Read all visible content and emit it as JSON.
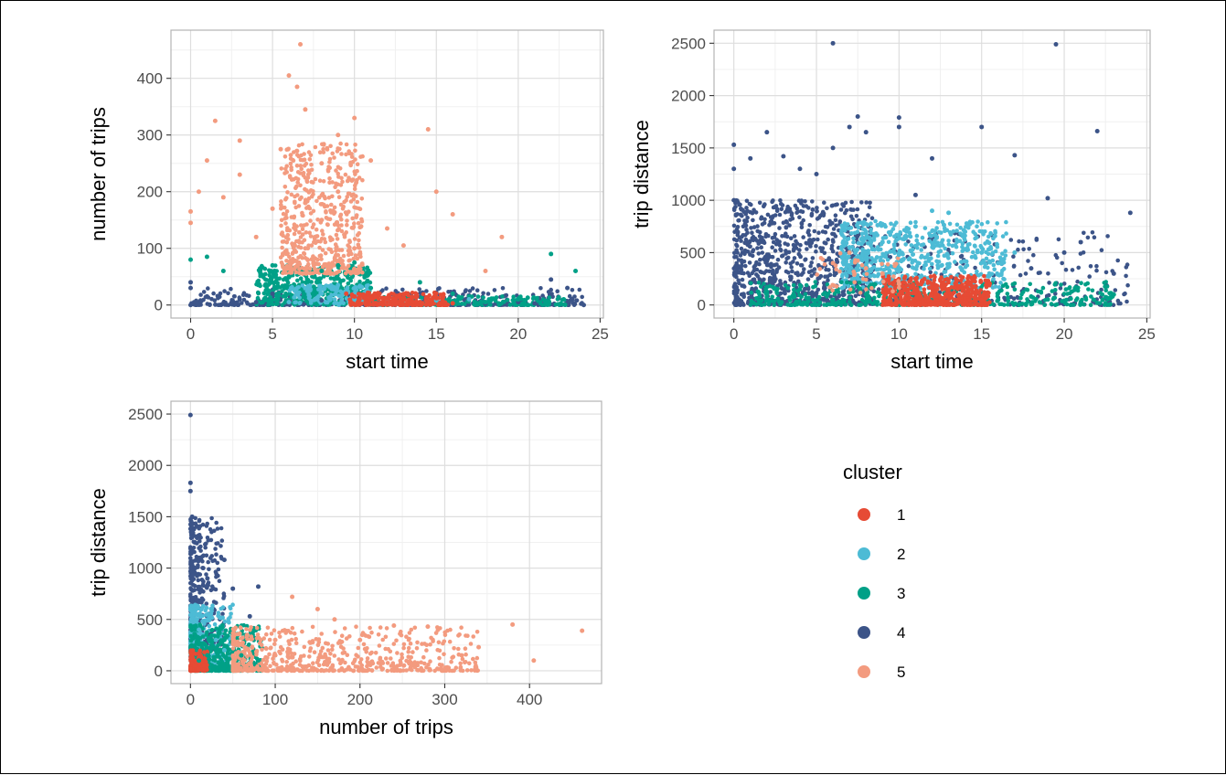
{
  "legend": {
    "title": "cluster",
    "entries": [
      {
        "label": "1",
        "color": "#E64B35"
      },
      {
        "label": "2",
        "color": "#4DBBD5"
      },
      {
        "label": "3",
        "color": "#00A087"
      },
      {
        "label": "4",
        "color": "#3C5488"
      },
      {
        "label": "5",
        "color": "#F39B7F"
      }
    ]
  },
  "chart_data": [
    {
      "type": "scatter",
      "xlabel": "start time",
      "ylabel": "number of trips",
      "xlim": [
        -1.2,
        25.2
      ],
      "ylim": [
        -23,
        485
      ],
      "xticks": [
        0,
        5,
        10,
        15,
        20,
        25
      ],
      "yticks": [
        0,
        100,
        200,
        300,
        400
      ],
      "grid": true,
      "clusters": {
        "1": {
          "x_range": [
            9.5,
            16
          ],
          "y_range": [
            0,
            25
          ]
        },
        "2": {
          "x_range": [
            6,
            17
          ],
          "y_range": [
            0,
            40
          ]
        },
        "3": {
          "x_range": [
            0,
            23.5
          ],
          "y_range": [
            0,
            90
          ]
        },
        "4": {
          "x_range": [
            0,
            24
          ],
          "y_range": [
            0,
            45
          ]
        },
        "5": {
          "x_range": [
            0,
            19
          ],
          "y_range": [
            40,
            460
          ]
        }
      },
      "series": [
        {
          "name": "4",
          "points": [
            [
              0,
              0
            ],
            [
              2,
              3
            ],
            [
              4,
              5
            ],
            [
              6,
              2
            ],
            [
              8,
              8
            ],
            [
              0,
              30
            ],
            [
              0,
              40
            ],
            [
              1,
              15
            ],
            [
              3,
              10
            ],
            [
              5,
              20
            ],
            [
              22,
              45
            ],
            [
              23,
              30
            ],
            [
              24,
              0
            ],
            [
              20,
              5
            ],
            [
              21,
              3
            ],
            [
              18,
              2
            ]
          ]
        },
        {
          "name": "3",
          "points": [
            [
              0,
              80
            ],
            [
              1,
              85
            ],
            [
              2,
              60
            ],
            [
              5,
              70
            ],
            [
              6,
              50
            ],
            [
              8,
              60
            ],
            [
              9,
              70
            ],
            [
              10,
              75
            ],
            [
              11,
              30
            ],
            [
              14,
              40
            ],
            [
              16,
              20
            ],
            [
              20,
              10
            ],
            [
              22,
              90
            ],
            [
              23.5,
              60
            ],
            [
              18,
              5
            ],
            [
              17,
              15
            ]
          ]
        },
        {
          "name": "2",
          "points": [
            [
              6,
              5
            ],
            [
              8,
              20
            ],
            [
              9,
              35
            ],
            [
              10,
              10
            ],
            [
              12,
              5
            ],
            [
              15,
              8
            ],
            [
              17,
              10
            ]
          ]
        },
        {
          "name": "1",
          "points": [
            [
              9.5,
              20
            ],
            [
              10,
              15
            ],
            [
              11,
              10
            ],
            [
              12,
              5
            ],
            [
              13,
              10
            ],
            [
              14,
              5
            ],
            [
              15,
              12
            ],
            [
              16,
              3
            ]
          ]
        },
        {
          "name": "5",
          "points": [
            [
              0,
              165
            ],
            [
              0,
              145
            ],
            [
              0.5,
              200
            ],
            [
              1,
              255
            ],
            [
              1.5,
              325
            ],
            [
              2,
              190
            ],
            [
              3,
              290
            ],
            [
              3,
              230
            ],
            [
              4,
              120
            ],
            [
              5,
              170
            ],
            [
              5.5,
              275
            ],
            [
              6,
              405
            ],
            [
              6.5,
              385
            ],
            [
              6.7,
              460
            ],
            [
              7,
              345
            ],
            [
              7,
              180
            ],
            [
              7,
              100
            ],
            [
              8,
              250
            ],
            [
              8,
              150
            ],
            [
              9,
              300
            ],
            [
              9,
              200
            ],
            [
              10,
              330
            ],
            [
              10,
              100
            ],
            [
              11,
              255
            ],
            [
              12,
              135
            ],
            [
              13,
              105
            ],
            [
              14.5,
              310
            ],
            [
              15,
              200
            ],
            [
              16,
              160
            ],
            [
              18,
              60
            ],
            [
              19,
              120
            ]
          ]
        }
      ]
    },
    {
      "type": "scatter",
      "xlabel": "start time",
      "ylabel": "trip distance",
      "xlim": [
        -1.2,
        25.2
      ],
      "ylim": [
        -125,
        2625
      ],
      "xticks": [
        0,
        5,
        10,
        15,
        20,
        25
      ],
      "yticks": [
        0,
        500,
        1000,
        1500,
        2000,
        2500
      ],
      "grid": true,
      "series": [
        {
          "name": "4",
          "points": [
            [
              0,
              1530
            ],
            [
              0,
              1300
            ],
            [
              0,
              1000
            ],
            [
              1,
              1400
            ],
            [
              2,
              1650
            ],
            [
              3,
              1420
            ],
            [
              4,
              1300
            ],
            [
              5,
              1250
            ],
            [
              6,
              2500
            ],
            [
              6,
              1500
            ],
            [
              7,
              1700
            ],
            [
              7.5,
              1800
            ],
            [
              8,
              1650
            ],
            [
              10,
              1790
            ],
            [
              10,
              1700
            ],
            [
              11,
              1050
            ],
            [
              12,
              1400
            ],
            [
              15,
              1700
            ],
            [
              17,
              1430
            ],
            [
              19,
              1020
            ],
            [
              19.5,
              2490
            ],
            [
              22,
              1660
            ],
            [
              24,
              880
            ],
            [
              21,
              600
            ],
            [
              23,
              300
            ],
            [
              20,
              500
            ],
            [
              18,
              350
            ]
          ]
        },
        {
          "name": "2",
          "points": [
            [
              7,
              550
            ],
            [
              8,
              700
            ],
            [
              9,
              600
            ],
            [
              10,
              480
            ],
            [
              11,
              750
            ],
            [
              12,
              900
            ],
            [
              13,
              880
            ],
            [
              14,
              700
            ],
            [
              15,
              500
            ],
            [
              16,
              400
            ],
            [
              17,
              500
            ]
          ]
        },
        {
          "name": "3",
          "points": [
            [
              2,
              100
            ],
            [
              4,
              150
            ],
            [
              6,
              50
            ],
            [
              8,
              100
            ],
            [
              16,
              50
            ],
            [
              18,
              80
            ],
            [
              20,
              40
            ],
            [
              22,
              20
            ],
            [
              23,
              100
            ]
          ]
        },
        {
          "name": "1",
          "points": [
            [
              10,
              100
            ],
            [
              11,
              250
            ],
            [
              12,
              200
            ],
            [
              13,
              150
            ],
            [
              14,
              100
            ],
            [
              15,
              50
            ]
          ]
        },
        {
          "name": "5",
          "points": [
            [
              6,
              400
            ],
            [
              7,
              500
            ],
            [
              8,
              350
            ],
            [
              9,
              300
            ],
            [
              10,
              200
            ]
          ]
        }
      ]
    },
    {
      "type": "scatter",
      "xlabel": "number of trips",
      "ylabel": "trip distance",
      "xlim": [
        -23,
        485
      ],
      "ylim": [
        -125,
        2625
      ],
      "xticks": [
        0,
        100,
        200,
        300,
        400
      ],
      "yticks": [
        0,
        500,
        1000,
        1500,
        2000,
        2500
      ],
      "grid": true,
      "series": [
        {
          "name": "4",
          "points": [
            [
              0,
              2490
            ],
            [
              0,
              1830
            ],
            [
              0,
              1750
            ],
            [
              2,
              1500
            ],
            [
              5,
              1250
            ],
            [
              10,
              1100
            ],
            [
              15,
              1000
            ],
            [
              20,
              900
            ],
            [
              40,
              1080
            ],
            [
              50,
              800
            ],
            [
              70,
              530
            ],
            [
              80,
              820
            ]
          ]
        },
        {
          "name": "2",
          "points": [
            [
              0,
              600
            ],
            [
              5,
              550
            ],
            [
              10,
              400
            ],
            [
              20,
              500
            ],
            [
              30,
              300
            ],
            [
              40,
              200
            ]
          ]
        },
        {
          "name": "3",
          "points": [
            [
              10,
              100
            ],
            [
              20,
              150
            ],
            [
              30,
              200
            ],
            [
              40,
              300
            ],
            [
              60,
              150
            ],
            [
              80,
              100
            ]
          ]
        },
        {
          "name": "1",
          "points": [
            [
              5,
              50
            ],
            [
              10,
              20
            ],
            [
              15,
              10
            ]
          ]
        },
        {
          "name": "5",
          "points": [
            [
              100,
              300
            ],
            [
              120,
              720
            ],
            [
              150,
              600
            ],
            [
              170,
              500
            ],
            [
              200,
              300
            ],
            [
              240,
              440
            ],
            [
              280,
              430
            ],
            [
              320,
              150
            ],
            [
              340,
              230
            ],
            [
              380,
              450
            ],
            [
              405,
              100
            ],
            [
              462,
              390
            ]
          ]
        }
      ]
    }
  ]
}
